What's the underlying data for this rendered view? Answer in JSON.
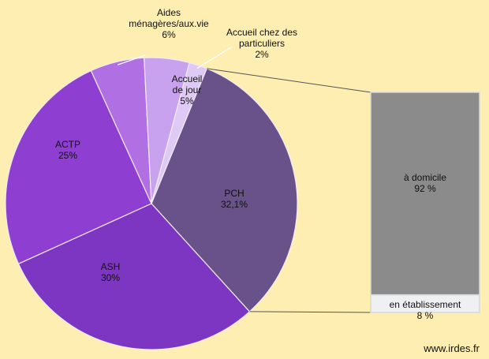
{
  "chart_data": {
    "type": "pie",
    "categories": [
      "PCH",
      "ASH",
      "ACTP",
      "Aides ménagères/aux.vie",
      "Accueil de jour",
      "Accueil chez des particuliers"
    ],
    "values": [
      32.1,
      30,
      25,
      6,
      5,
      2
    ],
    "value_labels": [
      "32,1%",
      "30%",
      "25%",
      "6%",
      "5%",
      "2%"
    ],
    "colors": [
      "#69518a",
      "#7d36c2",
      "#8e3fd2",
      "#b06fe2",
      "#c9a2ef",
      "#dfcaf6"
    ],
    "bar": {
      "type": "bar",
      "categories": [
        "à domicile",
        "en établissement"
      ],
      "values": [
        92,
        8
      ],
      "value_labels": [
        "92 %",
        "8 %"
      ],
      "colors": [
        "#8b8b8b",
        "#eef0f2"
      ]
    },
    "source": "www.irdes.fr"
  }
}
